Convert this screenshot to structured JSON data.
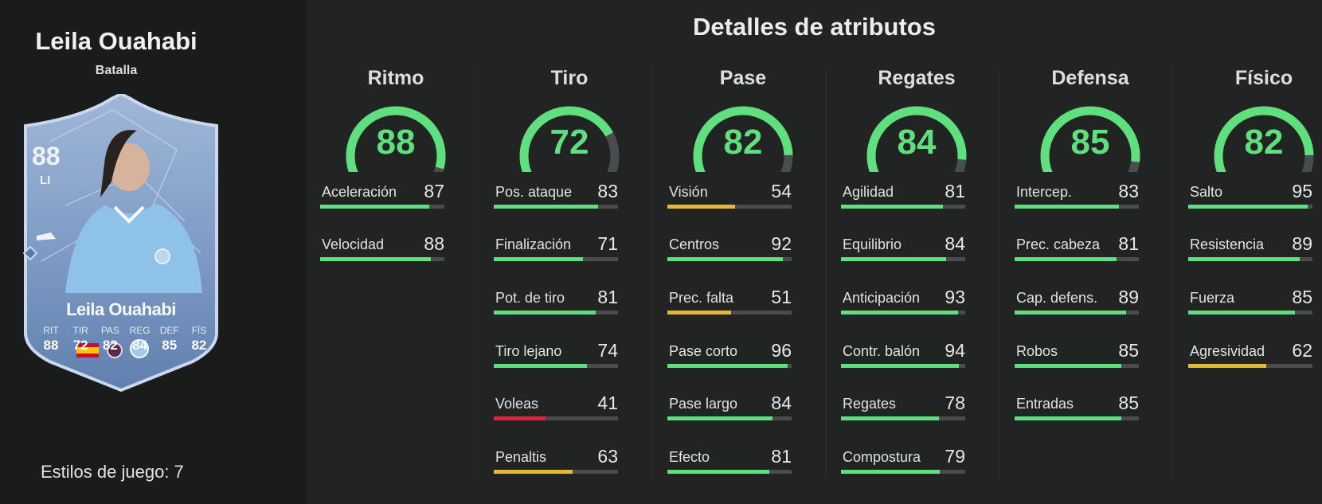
{
  "player": {
    "name": "Leila Ouahabi",
    "playstyle": "Batalla",
    "playstyles_label": "Estilos de juego: 7"
  },
  "card": {
    "rating": "88",
    "position": "LI",
    "name": "Leila Ouahabi",
    "stat_labels": [
      "RIT",
      "TIR",
      "PAS",
      "REG",
      "DEF",
      "FÍS"
    ],
    "stat_values": [
      "88",
      "72",
      "82",
      "84",
      "85",
      "82"
    ],
    "icons": [
      "boot-icon",
      "club-crest-icon",
      "team-badge-icon",
      "spain-flag-icon",
      "league-badge-icon",
      "club-badge-icon"
    ]
  },
  "section_title": "Detalles de atributos",
  "colors": {
    "green": "#5fdf7d",
    "yellow": "#e6b83a",
    "red": "#d9263a",
    "track": "#4a4b4b"
  },
  "categories": [
    {
      "name": "Ritmo",
      "value": 88,
      "stats": [
        {
          "label": "Aceleración",
          "value": 87
        },
        {
          "label": "Velocidad",
          "value": 88
        }
      ]
    },
    {
      "name": "Tiro",
      "value": 72,
      "stats": [
        {
          "label": "Pos. ataque",
          "value": 83
        },
        {
          "label": "Finalización",
          "value": 71
        },
        {
          "label": "Pot. de tiro",
          "value": 81
        },
        {
          "label": "Tiro lejano",
          "value": 74
        },
        {
          "label": "Voleas",
          "value": 41
        },
        {
          "label": "Penaltis",
          "value": 63
        }
      ]
    },
    {
      "name": "Pase",
      "value": 82,
      "stats": [
        {
          "label": "Visión",
          "value": 54
        },
        {
          "label": "Centros",
          "value": 92
        },
        {
          "label": "Prec. falta",
          "value": 51
        },
        {
          "label": "Pase corto",
          "value": 96
        },
        {
          "label": "Pase largo",
          "value": 84
        },
        {
          "label": "Efecto",
          "value": 81
        }
      ]
    },
    {
      "name": "Regates",
      "value": 84,
      "stats": [
        {
          "label": "Agilidad",
          "value": 81
        },
        {
          "label": "Equilibrio",
          "value": 84
        },
        {
          "label": "Anticipación",
          "value": 93
        },
        {
          "label": "Contr. balón",
          "value": 94
        },
        {
          "label": "Regates",
          "value": 78
        },
        {
          "label": "Compostura",
          "value": 79
        }
      ]
    },
    {
      "name": "Defensa",
      "value": 85,
      "stats": [
        {
          "label": "Intercep.",
          "value": 83
        },
        {
          "label": "Prec. cabeza",
          "value": 81
        },
        {
          "label": "Cap. defens.",
          "value": 89
        },
        {
          "label": "Robos",
          "value": 85
        },
        {
          "label": "Entradas",
          "value": 85
        }
      ]
    },
    {
      "name": "Físico",
      "value": 82,
      "stats": [
        {
          "label": "Salto",
          "value": 95
        },
        {
          "label": "Resistencia",
          "value": 89
        },
        {
          "label": "Fuerza",
          "value": 85
        },
        {
          "label": "Agresividad",
          "value": 62
        }
      ]
    }
  ]
}
